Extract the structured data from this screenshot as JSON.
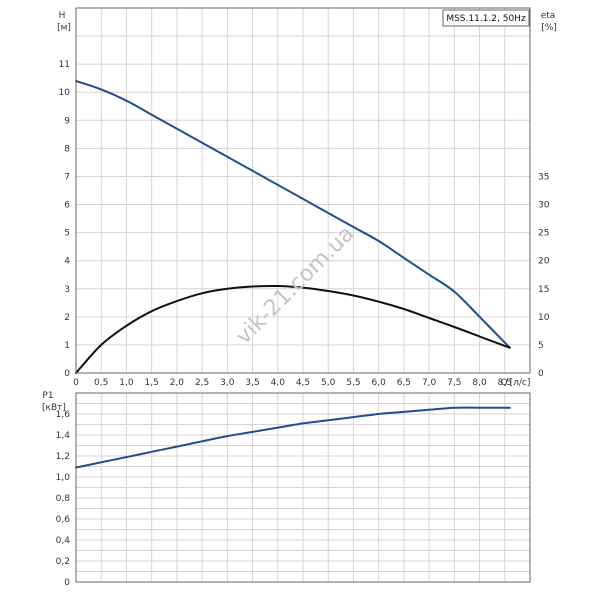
{
  "chart_data": [
    {
      "type": "line",
      "title": "MSS.11.1.2, 50Hz",
      "x_axis": {
        "label": "Q",
        "unit": "[л/с]",
        "range": [
          0,
          9
        ],
        "ticks": [
          0,
          0.5,
          1,
          1.5,
          2,
          2.5,
          3,
          3.5,
          4,
          4.5,
          5,
          5.5,
          6,
          6.5,
          7,
          7.5,
          8,
          8.5
        ],
        "tick_labels": [
          "0",
          "0,5",
          "1,0",
          "1,5",
          "2,0",
          "2,5",
          "3,0",
          "3,5",
          "4,0",
          "4,5",
          "5,0",
          "5,5",
          "6,0",
          "6,5",
          "7,0",
          "7,5",
          "8,0",
          "8,5"
        ]
      },
      "y_axis_left": {
        "label": "H",
        "unit": "[м]",
        "range": [
          0,
          13
        ],
        "ticks": [
          0,
          1,
          2,
          3,
          4,
          5,
          6,
          7,
          8,
          9,
          10,
          11
        ],
        "tick_labels": [
          "0",
          "1",
          "2",
          "3",
          "4",
          "5",
          "6",
          "7",
          "8",
          "9",
          "10",
          "11"
        ]
      },
      "y_axis_right": {
        "label": "eta",
        "unit": "[%]",
        "range": [
          0,
          65
        ],
        "ticks": [
          0,
          5,
          10,
          15,
          20,
          25,
          30,
          35
        ],
        "tick_labels": [
          "0",
          "5",
          "10",
          "15",
          "20",
          "25",
          "30",
          "35"
        ]
      },
      "grid": true,
      "series": [
        {
          "axis": "left",
          "color": "#1f4f8b",
          "x": [
            0,
            0.5,
            1,
            1.5,
            2,
            2.5,
            3,
            3.5,
            4,
            4.5,
            5,
            5.5,
            6,
            6.5,
            7,
            7.5,
            8,
            8.6
          ],
          "y": [
            10.4,
            10.1,
            9.7,
            9.2,
            8.7,
            8.2,
            7.7,
            7.2,
            6.7,
            6.2,
            5.7,
            5.2,
            4.7,
            4.1,
            3.5,
            2.9,
            2.0,
            0.9
          ]
        },
        {
          "axis": "right",
          "color": "#111111",
          "x": [
            0,
            0.5,
            1,
            1.5,
            2,
            2.5,
            3,
            3.5,
            4,
            4.5,
            5,
            5.5,
            6,
            6.5,
            7,
            7.5,
            8,
            8.6
          ],
          "y": [
            0,
            5,
            8.4,
            11,
            12.8,
            14.2,
            15,
            15.4,
            15.5,
            15.2,
            14.6,
            13.8,
            12.7,
            11.4,
            9.8,
            8.2,
            6.5,
            4.5
          ]
        }
      ]
    },
    {
      "type": "line",
      "x_axis": {
        "range": [
          0,
          9
        ]
      },
      "y_axis_left": {
        "label": "P1",
        "unit": "[кВт]",
        "range": [
          0,
          1.8
        ],
        "ticks": [
          0,
          0.2,
          0.4,
          0.6,
          0.8,
          1.0,
          1.2,
          1.4,
          1.6
        ],
        "tick_labels": [
          "0",
          "0,2",
          "0,4",
          "0,6",
          "0,8",
          "1,0",
          "1,2",
          "1,4",
          "1,6"
        ]
      },
      "grid": true,
      "series": [
        {
          "axis": "left",
          "color": "#1f4f8b",
          "x": [
            0,
            0.5,
            1,
            1.5,
            2,
            2.5,
            3,
            3.5,
            4,
            4.5,
            5,
            5.5,
            6,
            6.5,
            7,
            7.5,
            8,
            8.6
          ],
          "y": [
            1.09,
            1.14,
            1.19,
            1.24,
            1.29,
            1.34,
            1.39,
            1.43,
            1.47,
            1.51,
            1.54,
            1.57,
            1.6,
            1.62,
            1.64,
            1.66,
            1.66,
            1.66
          ]
        }
      ]
    }
  ],
  "watermark": "vik-21.com.ua"
}
